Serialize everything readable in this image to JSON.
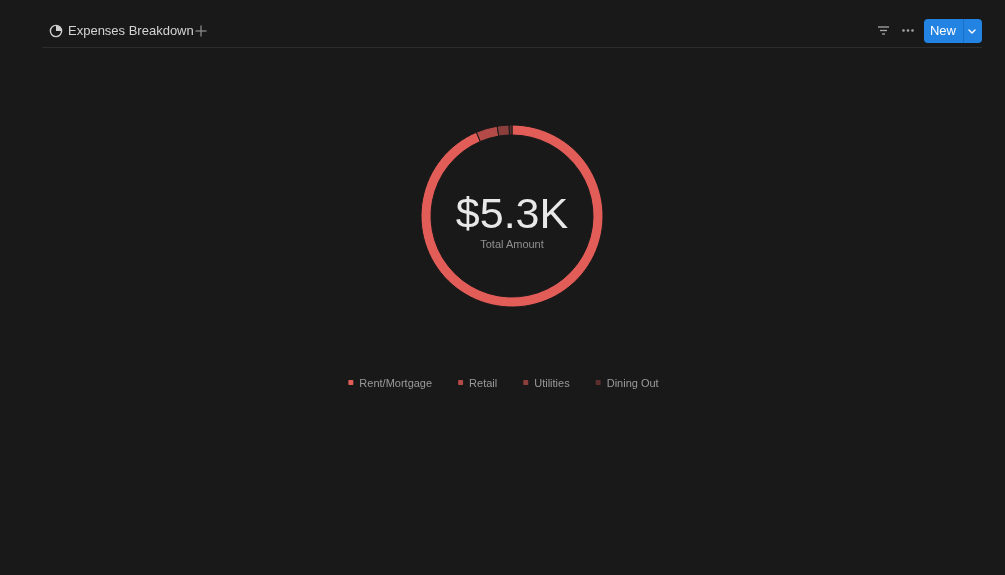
{
  "chart_data": {
    "type": "donut",
    "title": "Expenses Breakdown",
    "categories": [
      "Rent/Mortgage",
      "Retail",
      "Utilities",
      "Dining Out"
    ],
    "values": [
      93.6,
      3.8,
      2.1,
      0.5
    ],
    "colors": [
      "#e25c58",
      "#b44b48",
      "#8a3f3d",
      "#5c2f2e"
    ],
    "legend": "bottom",
    "annotations": [
      "$5.3K",
      "Total Amount",
      "New"
    ]
  }
}
